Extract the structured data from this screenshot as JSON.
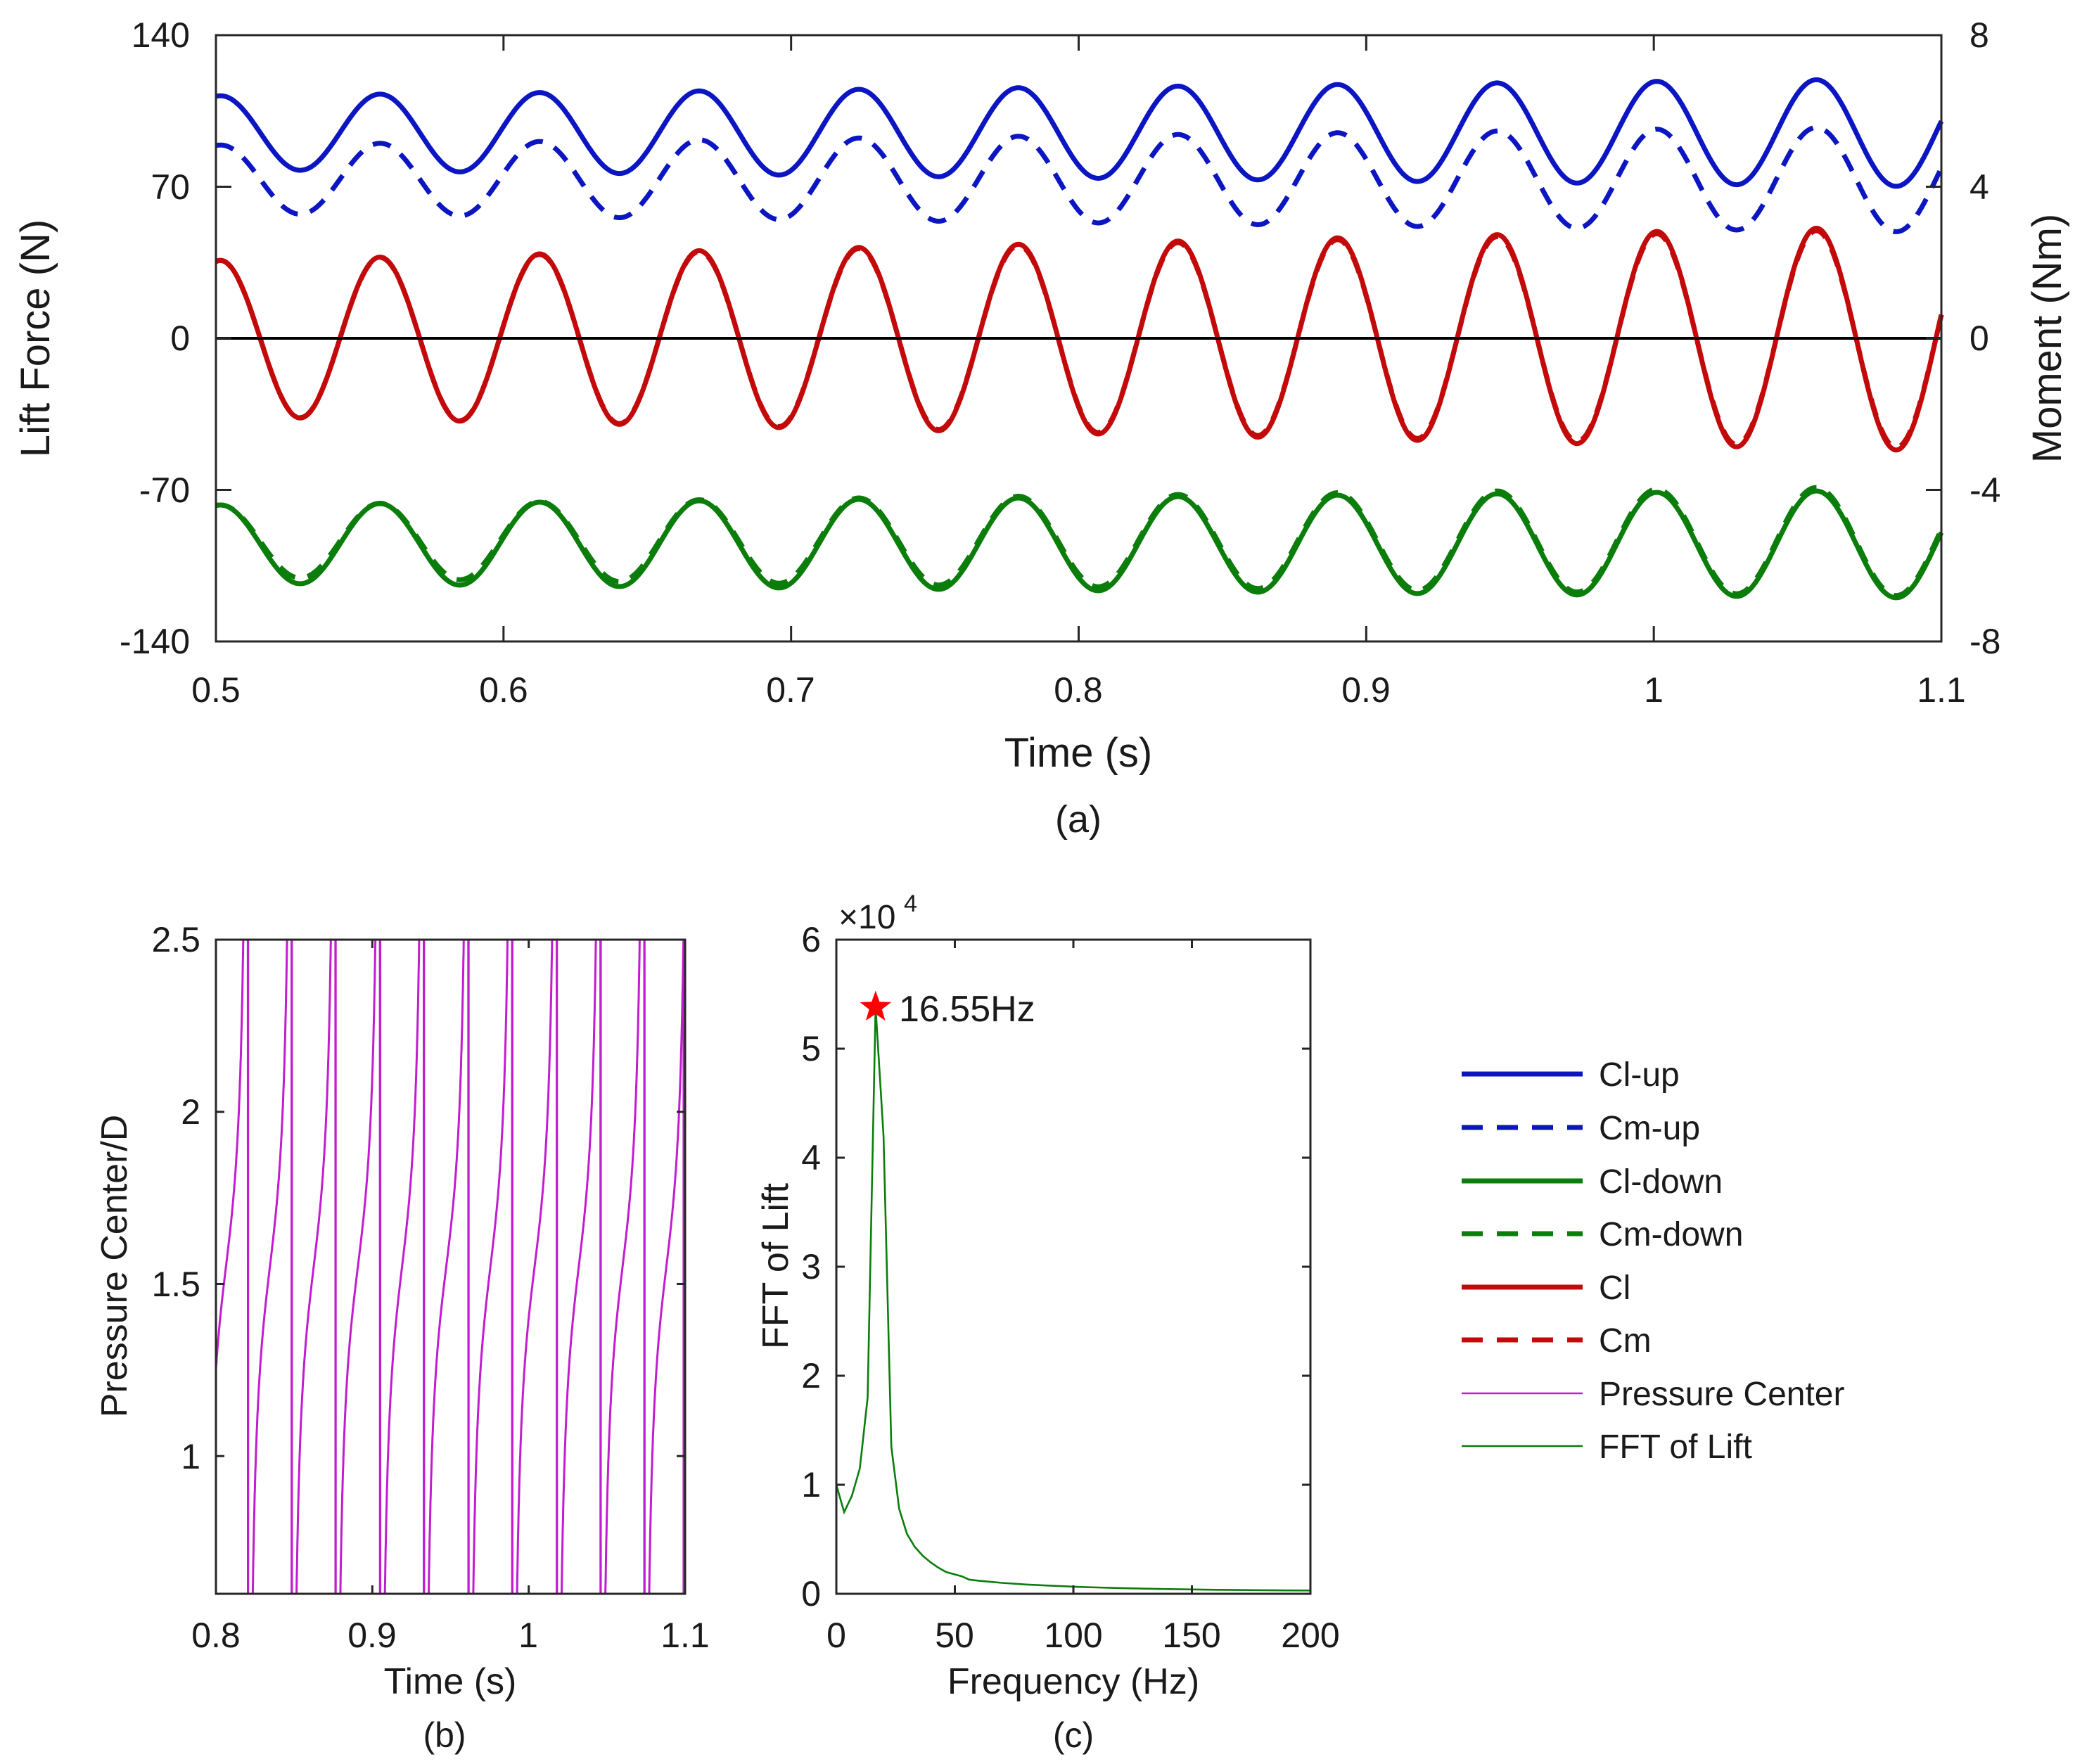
{
  "colors": {
    "blue": "#0b16c2",
    "green": "#0a7d0a",
    "red": "#c30a0a",
    "magenta": "#c21ccf",
    "axis": "#262626",
    "star": "#ff0000"
  },
  "chart_data": [
    {
      "id": "a",
      "type": "line",
      "caption": "(a)",
      "xlabel": "Time (s)",
      "ylabel": "Lift Force (N)",
      "y2label": "Moment (Nm)",
      "xlim": [
        0.5,
        1.1
      ],
      "ylim": [
        -140,
        140
      ],
      "y2lim": [
        -8,
        8
      ],
      "xticks": [
        "0.5",
        "0.6",
        "0.7",
        "0.8",
        "0.9",
        "1",
        "1.1"
      ],
      "yticks": [
        "-140",
        "-70",
        "0",
        "70",
        "140"
      ],
      "y2ticks": [
        "-8",
        "-4",
        "0",
        "4",
        "8"
      ],
      "reference_line_y": 0,
      "series": [
        {
          "name": "Cl-up",
          "axis": "left",
          "style": "solid",
          "color": "blue",
          "offset": 95,
          "amp_start": 17,
          "amp_end": 25,
          "period": 0.0555,
          "phase_peak_t": 0.557
        },
        {
          "name": "Cm-up",
          "axis": "right",
          "style": "dashed",
          "color": "blue",
          "offset": 4.2,
          "amp_start": 0.9,
          "amp_end": 1.4,
          "period": 0.0555,
          "phase_peak_t": 0.557
        },
        {
          "name": "Cl-down",
          "axis": "left",
          "style": "solid",
          "color": "green",
          "offset": -95,
          "amp_start": 18,
          "amp_end": 25,
          "period": 0.0555,
          "phase_peak_t": 0.557
        },
        {
          "name": "Cm-down",
          "axis": "right",
          "style": "dashed",
          "color": "green",
          "offset": -5.35,
          "amp_start": 0.95,
          "amp_end": 1.45,
          "period": 0.0555,
          "phase_peak_t": 0.557
        },
        {
          "name": "Cl",
          "axis": "left",
          "style": "solid",
          "color": "red",
          "offset": 0,
          "amp_start": 36,
          "amp_end": 52,
          "period": 0.0555,
          "phase_peak_t": 0.557
        },
        {
          "name": "Cm",
          "axis": "right",
          "style": "dashed",
          "color": "red",
          "offset": 0,
          "amp_start": 2.05,
          "amp_end": 2.9,
          "period": 0.0555,
          "phase_peak_t": 0.557
        }
      ]
    },
    {
      "id": "b",
      "type": "line",
      "caption": "(b)",
      "xlabel": "Time (s)",
      "ylabel": "Pressure Center/D",
      "xlim": [
        0.8,
        1.1
      ],
      "ylim": [
        0.6,
        2.5
      ],
      "xticks": [
        "0.8",
        "0.9",
        "1",
        "1.1"
      ],
      "yticks": [
        "1",
        "1.5",
        "2",
        "2.5"
      ],
      "series": [
        {
          "name": "Pressure Center",
          "style": "thin",
          "color": "magenta",
          "jump_times": [
            0.8205,
            0.8485,
            0.8765,
            0.905,
            0.933,
            0.9615,
            0.9895,
            1.018,
            1.046,
            1.074,
            1.102
          ],
          "plateau": 1.55
        }
      ]
    },
    {
      "id": "c",
      "type": "line",
      "caption": "(c)",
      "xlabel": "Frequency (Hz)",
      "ylabel": "FFT of Lift",
      "exponent_label": "×10",
      "exponent": "4",
      "xlim": [
        0,
        200
      ],
      "ylim": [
        0,
        6
      ],
      "xticks": [
        "0",
        "50",
        "100",
        "150",
        "200"
      ],
      "yticks": [
        "0",
        "1",
        "2",
        "3",
        "4",
        "5",
        "6"
      ],
      "peak": {
        "x": 16.55,
        "y": 5.38,
        "label": "16.55Hz"
      },
      "series": [
        {
          "name": "FFT of Lift",
          "style": "thin",
          "color": "green",
          "x": [
            0,
            3.3,
            6.6,
            9.9,
            13.2,
            16.55,
            19.9,
            23.2,
            26.5,
            29.8,
            33.1,
            36.4,
            39.7,
            43,
            46.3,
            49.6,
            53,
            56,
            60,
            70,
            80,
            90,
            100,
            110,
            120,
            130,
            140,
            150,
            160,
            170,
            180,
            190,
            200
          ],
          "y": [
            1.0,
            0.75,
            0.9,
            1.15,
            1.8,
            5.38,
            4.2,
            1.35,
            0.78,
            0.55,
            0.43,
            0.35,
            0.29,
            0.24,
            0.2,
            0.18,
            0.16,
            0.13,
            0.12,
            0.1,
            0.085,
            0.075,
            0.065,
            0.058,
            0.052,
            0.047,
            0.043,
            0.04,
            0.037,
            0.035,
            0.033,
            0.031,
            0.03
          ]
        }
      ]
    }
  ],
  "legend": {
    "entries": [
      {
        "label": "Cl-up",
        "color": "blue",
        "style": "solid"
      },
      {
        "label": "Cm-up",
        "color": "blue",
        "style": "dashed"
      },
      {
        "label": "Cl-down",
        "color": "green",
        "style": "solid"
      },
      {
        "label": "Cm-down",
        "color": "green",
        "style": "dashed"
      },
      {
        "label": "Cl",
        "color": "red",
        "style": "solid"
      },
      {
        "label": "Cm",
        "color": "red",
        "style": "dashed"
      },
      {
        "label": "Pressure Center",
        "color": "magenta",
        "style": "thin"
      },
      {
        "label": "FFT of Lift",
        "color": "green",
        "style": "thin"
      }
    ]
  }
}
